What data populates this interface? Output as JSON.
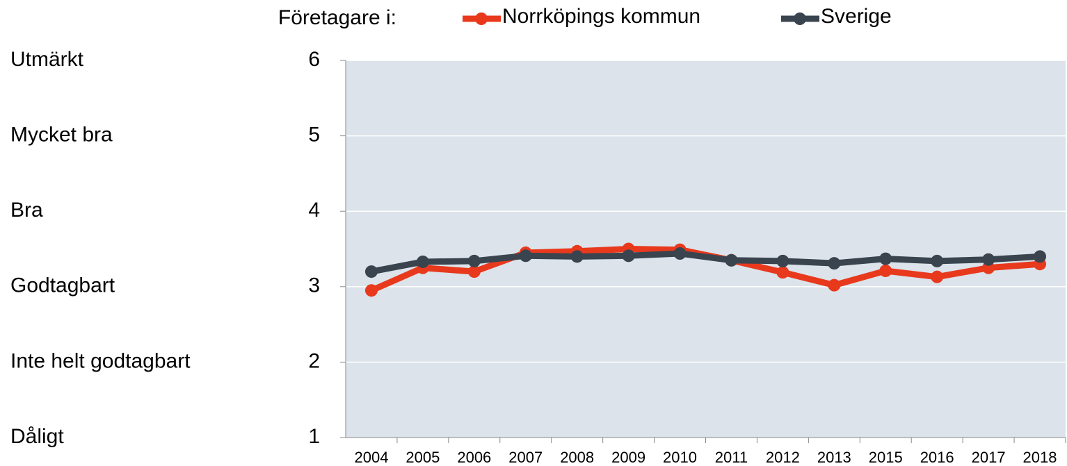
{
  "chart_data": {
    "type": "line",
    "legend_prefix": "Företagare i:",
    "categories": [
      "2004",
      "2005",
      "2006",
      "2007",
      "2008",
      "2009",
      "2010",
      "2011",
      "2012",
      "2013",
      "2015",
      "2016",
      "2017",
      "2018"
    ],
    "series": [
      {
        "name": "Norrköpings kommun",
        "color": "#e8391d",
        "values": [
          2.95,
          3.25,
          3.2,
          3.45,
          3.47,
          3.5,
          3.49,
          3.35,
          3.19,
          3.02,
          3.21,
          3.13,
          3.25,
          3.3
        ]
      },
      {
        "name": "Sverige",
        "color": "#39444f",
        "values": [
          3.2,
          3.33,
          3.34,
          3.41,
          3.4,
          3.41,
          3.44,
          3.35,
          3.34,
          3.31,
          3.37,
          3.34,
          3.36,
          3.4
        ]
      }
    ],
    "ylim": [
      1,
      6
    ],
    "yticks": [
      1,
      2,
      3,
      4,
      5,
      6
    ],
    "scale_labels": [
      {
        "value": 6,
        "label": "Utmärkt"
      },
      {
        "value": 5,
        "label": "Mycket bra"
      },
      {
        "value": 4,
        "label": "Bra"
      },
      {
        "value": 3,
        "label": "Godtagbart"
      },
      {
        "value": 2,
        "label": "Inte helt godtagbart"
      },
      {
        "value": 1,
        "label": "Dåligt"
      }
    ],
    "grid": true,
    "plot_background": "#dce3ea"
  }
}
